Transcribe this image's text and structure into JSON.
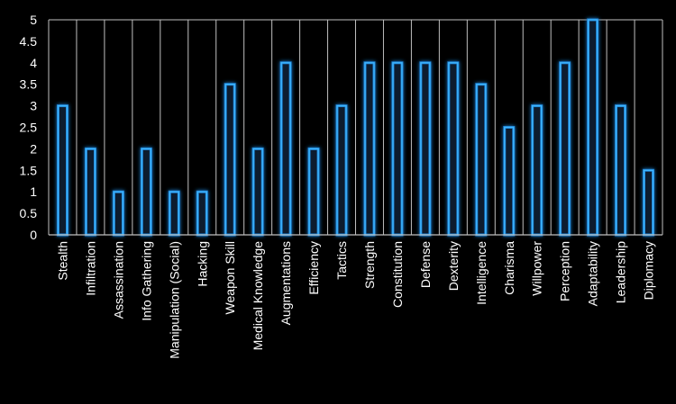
{
  "chart_data": {
    "type": "bar",
    "categories": [
      "Stealth",
      "Infiltration",
      "Assassination",
      "Info Gathering",
      "Manipulation (Social)",
      "Hacking",
      "Weapon Skill",
      "Medical Knowledge",
      "Augmentations",
      "Efficiency",
      "Tactics",
      "Strength",
      "Constitution",
      "Defense",
      "Dexterity",
      "Intelligence",
      "Charisma",
      "Willpower",
      "Perception",
      "Adaptability",
      "Leadership",
      "Diplomacy"
    ],
    "values": [
      3,
      2,
      1,
      2,
      1,
      1,
      3.5,
      2,
      4,
      2,
      3,
      4,
      4,
      4,
      4,
      3.5,
      2.5,
      3,
      4,
      5,
      3,
      1.5
    ],
    "ylim": [
      0,
      5
    ],
    "yticks": [
      "0",
      "0.5",
      "1",
      "1.5",
      "2",
      "2.5",
      "3",
      "3.5",
      "4",
      "4.5",
      "5"
    ],
    "grid": "vertical category separators",
    "legend": "none"
  },
  "colors": {
    "background": "#000000",
    "bar_fill": "#0a1a2e",
    "bar_edge": "#3fb6ff",
    "bar_glow": "#1e7fd0",
    "grid": "#bfbfbf",
    "text": "#ffffff"
  }
}
